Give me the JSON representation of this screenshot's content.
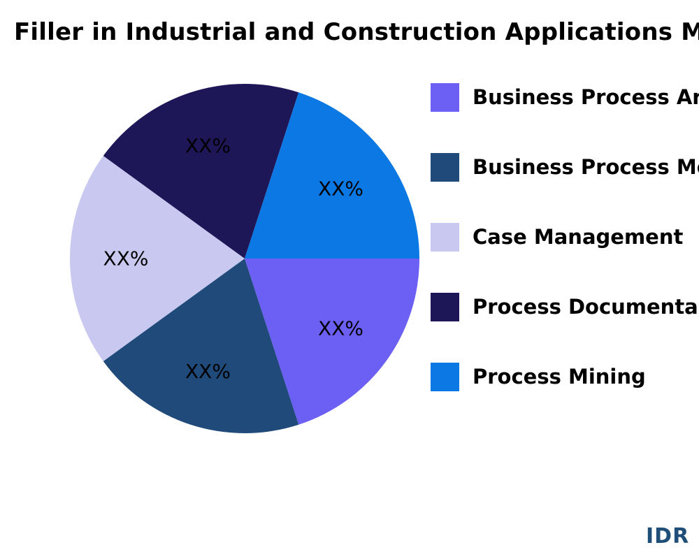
{
  "chart_data": {
    "type": "pie",
    "title": "Filler in Industrial and Construction Applications M",
    "categories": [
      "Business Process Analysis",
      "Business Process Modeling",
      "Case Management",
      "Process Documentation",
      "Process Mining"
    ],
    "legend_labels": [
      "Business Process Ar",
      "Business Process Mo",
      "Case Management",
      "Process Documenta",
      "Process Mining"
    ],
    "values": [
      20,
      20,
      20,
      20,
      20
    ],
    "data_labels": [
      "XX%",
      "XX%",
      "XX%",
      "XX%",
      "XX%"
    ],
    "colors": [
      "#6c5ff3",
      "#1f4a7a",
      "#c8c8f0",
      "#1d1657",
      "#0b78e3"
    ],
    "legend_position": "right"
  },
  "brand": {
    "logo_text": "IDR"
  }
}
